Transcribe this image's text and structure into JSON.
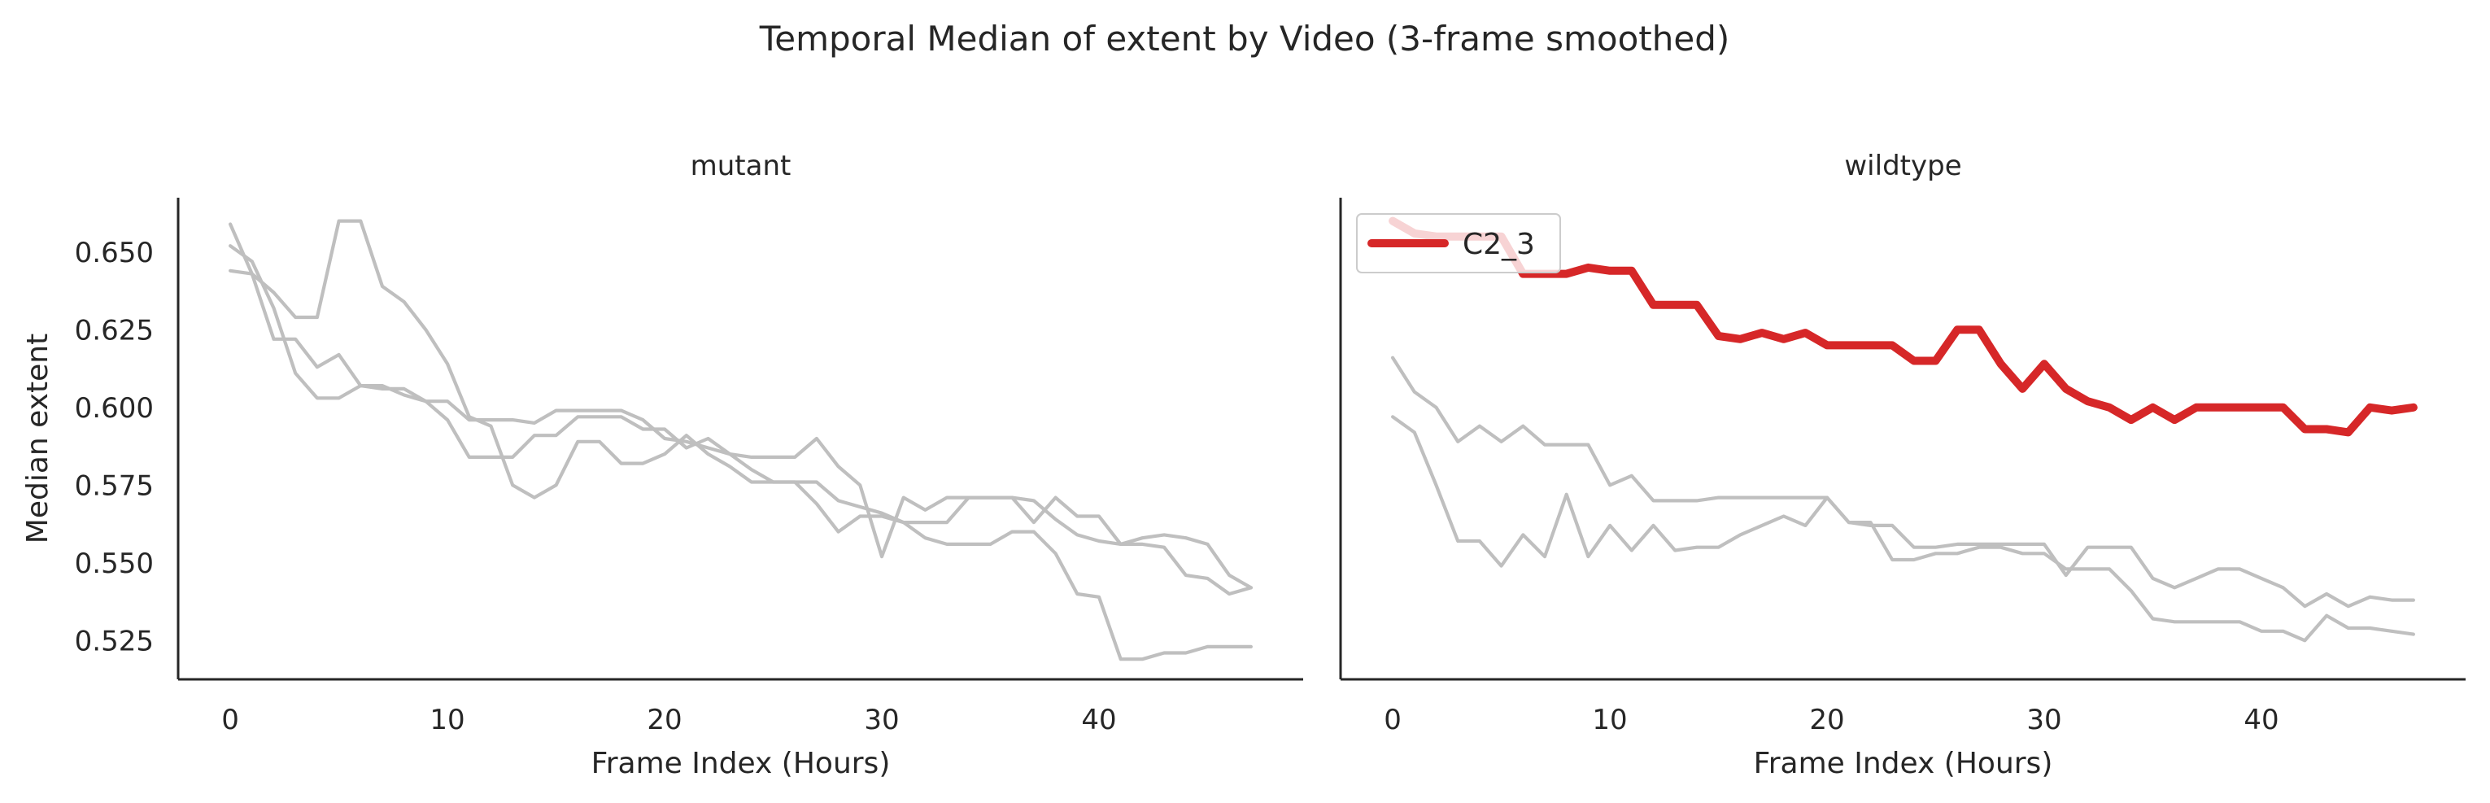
{
  "chart_data": {
    "type": "line",
    "title": "Temporal Median of extent by Video (3-frame smoothed)",
    "xlabel": "Frame Index (Hours)",
    "ylabel": "Median extent",
    "xlim": [
      -2.4,
      49.4
    ],
    "ylim": [
      0.5125,
      0.6675
    ],
    "xticks": [
      0,
      10,
      20,
      30,
      40
    ],
    "yticks": [
      "0.525",
      "0.550",
      "0.575",
      "0.600",
      "0.625",
      "0.650"
    ],
    "background_color": "#bfbfbf",
    "highlight_color": "#d62728",
    "grid": false,
    "legend": "top-left",
    "panels": [
      {
        "name": "mutant",
        "background": [
          [
            0.659,
            0.643,
            0.622,
            0.622,
            0.613,
            0.617,
            0.607,
            0.606,
            0.606,
            0.602,
            0.602,
            0.596,
            0.596,
            0.596,
            0.595,
            0.599,
            0.599,
            0.599,
            0.599,
            0.596,
            0.59,
            0.589,
            0.587,
            0.585,
            0.584,
            0.584,
            0.584,
            0.59,
            0.581,
            0.575,
            0.552,
            0.571,
            0.567,
            0.571,
            0.571,
            0.571,
            0.571,
            0.57,
            0.564,
            0.559,
            0.557,
            0.556,
            0.558,
            0.559,
            0.558,
            0.556,
            0.546,
            0.542
          ],
          [
            0.652,
            0.647,
            0.632,
            0.611,
            0.603,
            0.603,
            0.607,
            0.607,
            0.604,
            0.602,
            0.596,
            0.584,
            0.584,
            0.584,
            0.591,
            0.591,
            0.597,
            0.597,
            0.597,
            0.593,
            0.593,
            0.587,
            0.59,
            0.585,
            0.58,
            0.576,
            0.576,
            0.576,
            0.57,
            0.568,
            0.566,
            0.563,
            0.563,
            0.563,
            0.571,
            0.571,
            0.571,
            0.563,
            0.571,
            0.565,
            0.565,
            0.556,
            0.556,
            0.555,
            0.546,
            0.545,
            0.54,
            0.542
          ],
          [
            0.644,
            0.643,
            0.637,
            0.629,
            0.629,
            0.66,
            0.66,
            0.639,
            0.634,
            0.625,
            0.614,
            0.597,
            0.594,
            0.575,
            0.571,
            0.575,
            0.589,
            0.589,
            0.582,
            0.582,
            0.585,
            0.591,
            0.585,
            0.581,
            0.576,
            0.576,
            0.576,
            0.569,
            0.56,
            0.565,
            0.565,
            0.563,
            0.558,
            0.556,
            0.556,
            0.556,
            0.56,
            0.56,
            0.553,
            0.54,
            0.539,
            0.519,
            0.519,
            0.521,
            0.521,
            0.523,
            0.523,
            0.523
          ]
        ],
        "highlight": null
      },
      {
        "name": "wildtype",
        "background": [
          [
            0.616,
            0.605,
            0.6,
            0.589,
            0.594,
            0.589,
            0.594,
            0.588,
            0.588,
            0.588,
            0.575,
            0.578,
            0.57,
            0.57,
            0.57,
            0.571,
            0.571,
            0.571,
            0.571,
            0.571,
            0.571,
            0.563,
            0.562,
            0.562,
            0.555,
            0.555,
            0.556,
            0.556,
            0.556,
            0.556,
            0.556,
            0.546,
            0.555,
            0.555,
            0.555,
            0.545,
            0.542,
            0.545,
            0.548,
            0.548,
            0.545,
            0.542,
            0.536,
            0.54,
            0.536,
            0.539,
            0.538,
            0.538
          ],
          [
            0.597,
            0.592,
            0.575,
            0.557,
            0.557,
            0.549,
            0.559,
            0.552,
            0.572,
            0.552,
            0.562,
            0.554,
            0.562,
            0.554,
            0.555,
            0.555,
            0.559,
            0.562,
            0.565,
            0.562,
            0.571,
            0.563,
            0.563,
            0.551,
            0.551,
            0.553,
            0.553,
            0.555,
            0.555,
            0.553,
            0.553,
            0.548,
            0.548,
            0.548,
            0.541,
            0.532,
            0.531,
            0.531,
            0.531,
            0.531,
            0.528,
            0.528,
            0.525,
            0.533,
            0.529,
            0.529,
            0.528,
            0.527
          ]
        ],
        "highlight": {
          "label": "C2_3",
          "values": [
            0.66,
            0.656,
            0.655,
            0.655,
            0.655,
            0.655,
            0.643,
            0.643,
            0.643,
            0.645,
            0.644,
            0.644,
            0.633,
            0.633,
            0.633,
            0.623,
            0.622,
            0.624,
            0.622,
            0.624,
            0.62,
            0.62,
            0.62,
            0.62,
            0.615,
            0.615,
            0.625,
            0.625,
            0.614,
            0.606,
            0.614,
            0.606,
            0.602,
            0.6,
            0.596,
            0.6,
            0.596,
            0.6,
            0.6,
            0.6,
            0.6,
            0.6,
            0.593,
            0.593,
            0.592,
            0.6,
            0.599,
            0.6
          ]
        }
      }
    ]
  }
}
